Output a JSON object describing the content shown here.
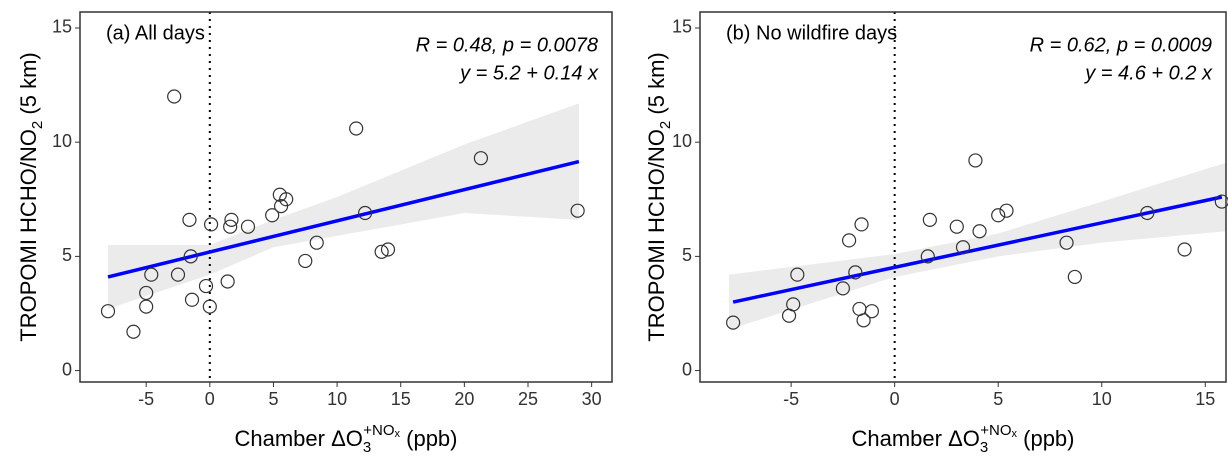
{
  "chart_data": [
    {
      "type": "scatter",
      "title": "(a) All days",
      "annotations": [
        "R = 0.48, p = 0.0078",
        "y = 5.2 + 0.14 x"
      ],
      "xlabel": [
        "Chamber  ΔO",
        "3",
        "+NO",
        "x",
        "  (ppb)"
      ],
      "ylabel": [
        "TROPOMI HCHO/NO",
        "2",
        " (5 km)"
      ],
      "xlim": [
        -10.2,
        31.6
      ],
      "ylim": [
        -0.5,
        15.7
      ],
      "xticks": [
        -5,
        0,
        5,
        10,
        15,
        20,
        25,
        30
      ],
      "yticks": [
        0,
        5,
        10,
        15
      ],
      "vline": 0,
      "x": [
        -8,
        -6,
        -5,
        -5,
        -4.6,
        -2.8,
        -2.5,
        -1.6,
        -1.5,
        -1.4,
        -0.3,
        0,
        0.1,
        1.4,
        1.6,
        1.7,
        3,
        4.9,
        5.5,
        5.6,
        6,
        7.5,
        8.4,
        11.5,
        12.2,
        13.5,
        14,
        21.3,
        28.9
      ],
      "values": [
        2.6,
        1.7,
        3.4,
        2.8,
        4.2,
        12.0,
        4.2,
        6.6,
        5.0,
        3.1,
        3.7,
        2.8,
        6.4,
        3.9,
        6.3,
        6.6,
        6.3,
        6.8,
        7.7,
        7.2,
        7.5,
        4.8,
        5.6,
        10.6,
        6.9,
        5.2,
        5.3,
        9.3,
        7.0
      ],
      "fit": {
        "x": [
          -8,
          29
        ],
        "y": [
          4.1,
          9.15
        ],
        "color": "#0000ff"
      },
      "band": {
        "x": [
          -8,
          0,
          5,
          10,
          20,
          29
        ],
        "upper": [
          5.5,
          5.5,
          6.6,
          7.6,
          9.9,
          11.7
        ],
        "lower": [
          2.7,
          4.2,
          5.4,
          5.9,
          6.9,
          6.6
        ],
        "color": "#ebebeb"
      }
    },
    {
      "type": "scatter",
      "title": "(b) No wildfire days",
      "annotations": [
        "R = 0.62, p = 0.0009",
        "y = 4.6 + 0.2 x"
      ],
      "xlabel": [
        "Chamber  ΔO",
        "3",
        "+NO",
        "x",
        "  (ppb)"
      ],
      "ylabel": [
        "TROPOMI HCHO/NO",
        "2",
        " (5 km)"
      ],
      "xlim": [
        -9.4,
        16.0
      ],
      "ylim": [
        -0.5,
        15.7
      ],
      "xticks": [
        -5,
        0,
        5,
        10,
        15
      ],
      "yticks": [
        0,
        5,
        10,
        15
      ],
      "vline": 0,
      "x": [
        -7.8,
        -5.1,
        -4.9,
        -4.7,
        -2.5,
        -2.2,
        -1.9,
        -1.7,
        -1.6,
        -1.5,
        -1.1,
        1.6,
        1.7,
        3.0,
        3.3,
        3.9,
        4.1,
        5.0,
        5.4,
        8.3,
        8.7,
        12.2,
        14.0,
        15.8
      ],
      "values": [
        2.1,
        2.4,
        2.9,
        4.2,
        3.6,
        5.7,
        4.3,
        2.7,
        6.4,
        2.2,
        2.6,
        5.0,
        6.6,
        6.3,
        5.4,
        9.2,
        6.1,
        6.8,
        7.0,
        5.6,
        4.1,
        6.9,
        5.3,
        7.4
      ],
      "fit": {
        "x": [
          -7.8,
          15.8
        ],
        "y": [
          3.0,
          7.6
        ],
        "color": "#0000ff"
      },
      "band": {
        "x": [
          -8,
          0,
          5,
          10,
          16
        ],
        "upper": [
          4.2,
          5.1,
          6.0,
          7.4,
          9.1
        ],
        "lower": [
          1.8,
          4.1,
          5.0,
          5.6,
          6.1
        ],
        "color": "#ebebeb"
      }
    }
  ]
}
